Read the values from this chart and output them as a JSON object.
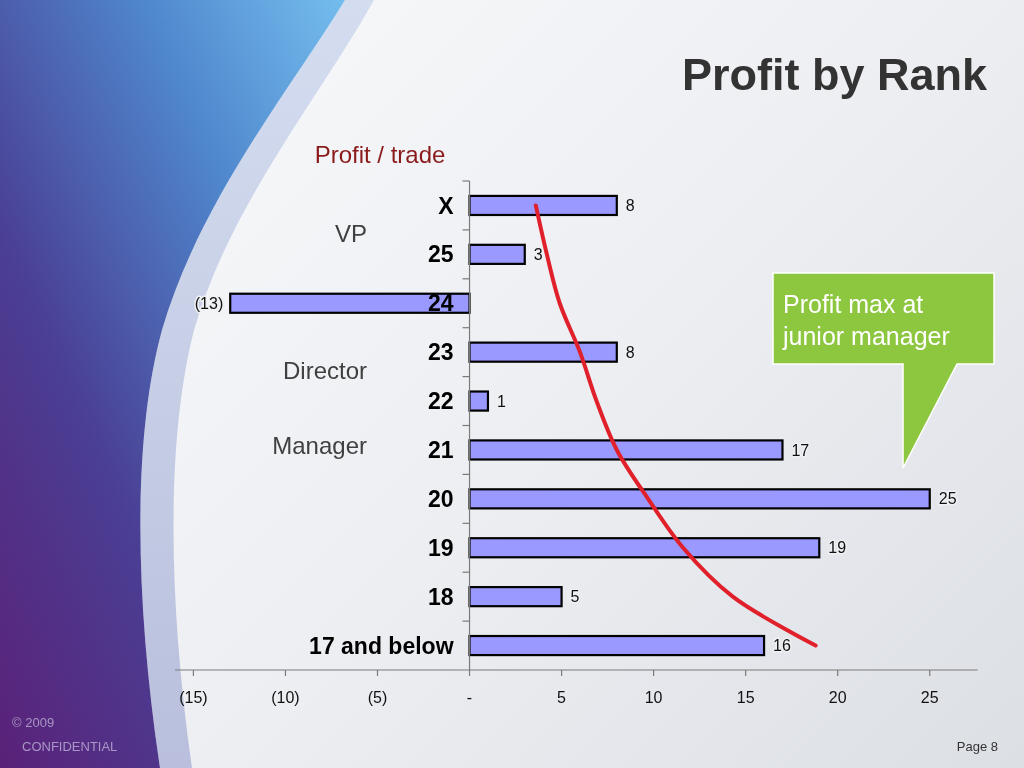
{
  "chart_data": {
    "type": "bar",
    "orientation": "horizontal",
    "title": "Profit by Rank",
    "subtitle": "Profit / trade",
    "categories": [
      "X",
      "25",
      "24",
      "23",
      "22",
      "21",
      "20",
      "19",
      "18",
      "17 and below"
    ],
    "series": [
      {
        "color": "#9999ff",
        "values": [
          8,
          3,
          -13,
          8,
          1,
          17,
          25,
          19,
          5,
          16
        ],
        "value_labels": [
          "8",
          "3",
          "(13)",
          "8",
          "1",
          "17",
          "25",
          "19",
          "5",
          "16"
        ]
      },
      {
        "type": "line",
        "color": "#e0202a",
        "values": [
          3.6,
          4.2,
          4.9,
          6.0,
          6.9,
          8.0,
          9.7,
          11.6,
          14.3,
          18.8
        ]
      }
    ],
    "xlim": [
      -16,
      27.6
    ],
    "xticks": [
      {
        "value": -15,
        "label": "(15)"
      },
      {
        "value": -10,
        "label": "(10)"
      },
      {
        "value": -5,
        "label": "(5)"
      },
      {
        "value": 0,
        "label": "-"
      },
      5,
      10,
      15,
      20,
      25
    ],
    "annotations": [
      "VP",
      "Director",
      "Manager",
      "Profit max at junior manager",
      "© 2009",
      "CONFIDENTIAL",
      "Page 8"
    ]
  }
}
